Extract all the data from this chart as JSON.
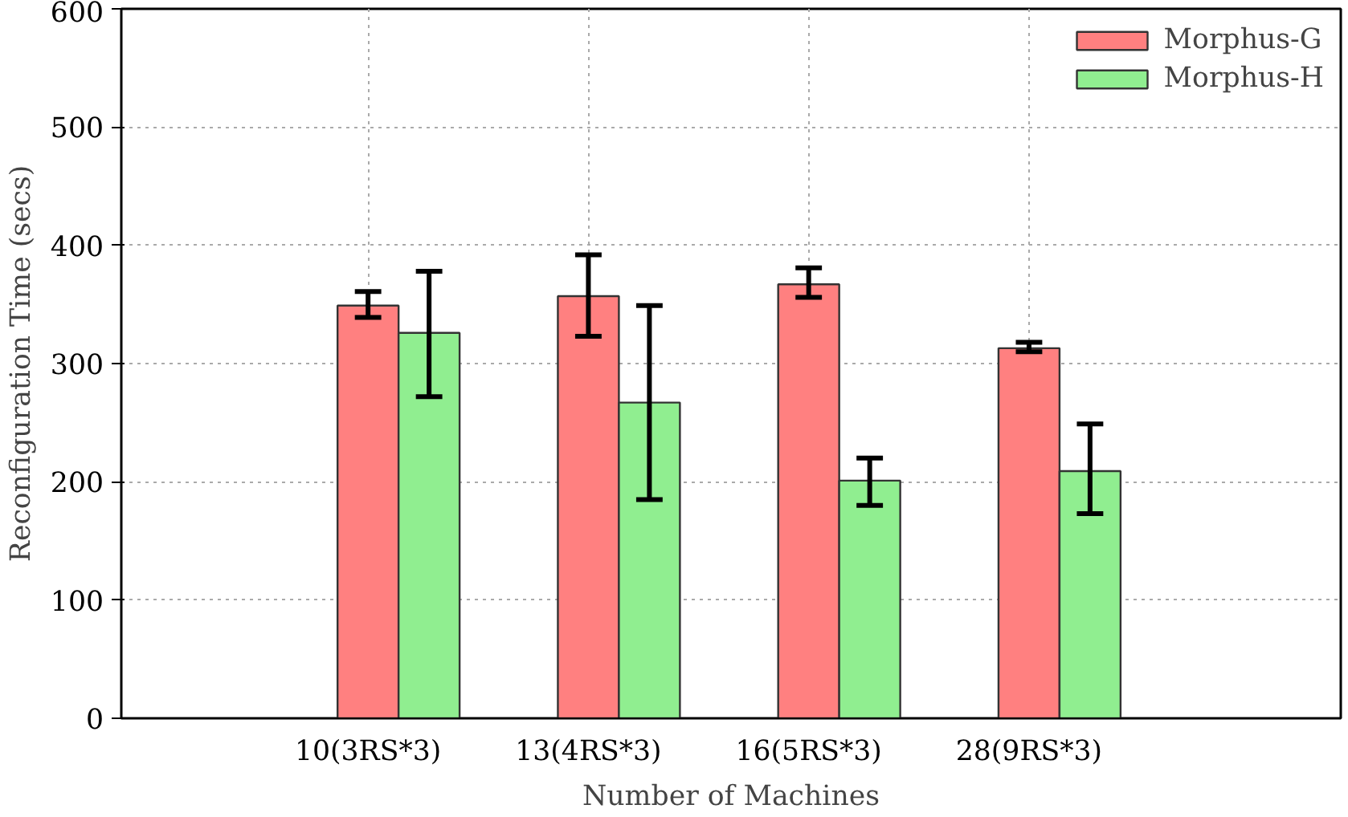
{
  "chart_data": {
    "type": "bar",
    "xlabel": "Number of Machines",
    "ylabel": "Reconfiguration Time (secs)",
    "categories": [
      "10(3RS*3)",
      "13(4RS*3)",
      "16(5RS*3)",
      "28(9RS*3)"
    ],
    "series": [
      {
        "name": "Morphus-G",
        "color": "#ff8080",
        "values": [
          349,
          357,
          367,
          313
        ],
        "errors": [
          [
            339,
            361
          ],
          [
            323,
            392
          ],
          [
            356,
            381
          ],
          [
            310,
            318
          ]
        ]
      },
      {
        "name": "Morphus-H",
        "color": "#90ee90",
        "values": [
          326,
          267,
          201,
          209
        ],
        "errors": [
          [
            272,
            378
          ],
          [
            185,
            349
          ],
          [
            180,
            220
          ],
          [
            173,
            249
          ]
        ]
      }
    ],
    "ylim": [
      0,
      600
    ],
    "yticks": [
      0,
      100,
      200,
      300,
      400,
      500,
      600
    ],
    "grid": true,
    "legend": "top right"
  }
}
